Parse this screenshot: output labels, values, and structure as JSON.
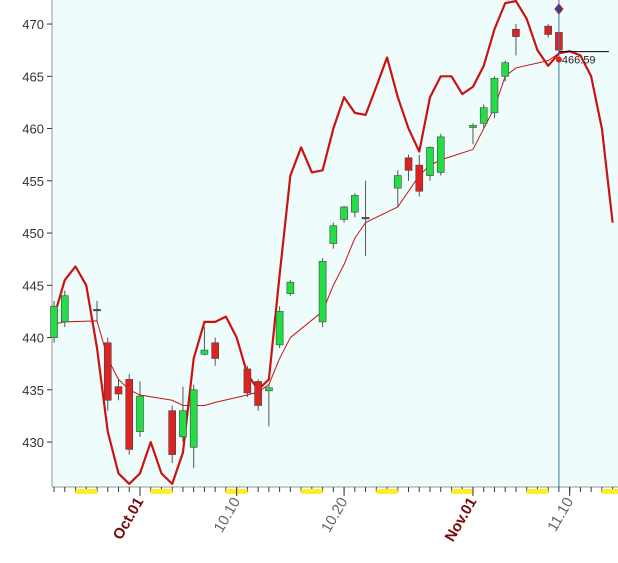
{
  "chart_data": {
    "type": "candlestick",
    "x": [
      -8,
      -7,
      -4,
      -3,
      -2,
      -1,
      0,
      3,
      4,
      5,
      6,
      7,
      10,
      11,
      12,
      13,
      14,
      17,
      18,
      19,
      20,
      21,
      24,
      25,
      26,
      27,
      28,
      31,
      32,
      33,
      34,
      35,
      38,
      39
    ],
    "open": [
      440,
      441.5,
      442.7,
      439.5,
      435.3,
      436,
      431,
      433,
      430.5,
      429.5,
      438.4,
      439.5,
      437,
      435.8,
      434.9,
      439.3,
      444.2,
      441.5,
      449,
      451.3,
      452,
      451.5,
      454.3,
      457.2,
      456.5,
      455.5,
      455.8,
      460.1,
      460.5,
      461.5,
      465,
      469.5,
      469.8,
      469.2
    ],
    "high": [
      443.5,
      444.5,
      443.5,
      440,
      436,
      436.5,
      435.8,
      433.5,
      435.3,
      435.5,
      441,
      440,
      437.3,
      436,
      435.5,
      443,
      445.5,
      447.6,
      451,
      452.6,
      453.8,
      455,
      456,
      457.5,
      457.5,
      458.3,
      459.5,
      460.5,
      462.3,
      465,
      466.5,
      470,
      470,
      469.3
    ],
    "low": [
      439.5,
      441,
      441.5,
      433,
      434,
      428.8,
      430.5,
      428,
      430,
      427.5,
      438.3,
      437.3,
      434.3,
      433,
      431.5,
      439,
      444,
      441,
      448.5,
      451,
      451.5,
      447.8,
      452.5,
      455,
      453.5,
      455,
      455.5,
      458.5,
      460,
      461,
      464.5,
      467,
      468.7,
      466.8
    ],
    "close": [
      443,
      444,
      442.7,
      434,
      434.6,
      429.3,
      434.4,
      428.8,
      433,
      435,
      438.8,
      438,
      434.7,
      433.5,
      435.2,
      442.5,
      445.3,
      447.3,
      450.7,
      452.5,
      453.6,
      451.5,
      455.5,
      456,
      454,
      458.2,
      459.2,
      460.3,
      462,
      464.8,
      466.3,
      468.8,
      469,
      467.5
    ],
    "up_color": "#22dd44",
    "down_color": "#dd2222",
    "series": [
      {
        "color": "#cc1111",
        "width": 1,
        "x": [
          -8,
          -7,
          -4,
          -3,
          -2,
          -1,
          0,
          3,
          4,
          5,
          6,
          7,
          10,
          11,
          12,
          13,
          14,
          17,
          18,
          19,
          20,
          21,
          24,
          25,
          26,
          27,
          28,
          31,
          32,
          33,
          34,
          35,
          38,
          39
        ],
        "values": [
          441.3,
          441.5,
          441.6,
          438,
          436,
          435,
          434.5,
          434,
          433.5,
          433.5,
          433.5,
          433.8,
          434.5,
          434.8,
          435.5,
          438,
          440,
          442.5,
          445,
          447,
          449.5,
          451,
          452.5,
          454,
          455.5,
          456.5,
          457,
          458,
          460,
          462,
          465,
          465.8,
          466.5,
          467.2
        ]
      },
      {
        "color": "#cc1111",
        "width": 2.2,
        "x": [
          -8,
          -7,
          -6,
          -5,
          -4,
          -3,
          -2,
          -1,
          0,
          1,
          2,
          3,
          4,
          5,
          6,
          7,
          8,
          9,
          10,
          11,
          12,
          13,
          14,
          15,
          16,
          17,
          18,
          19,
          20,
          21,
          22,
          23,
          24,
          25,
          26,
          27,
          28,
          29,
          30,
          31,
          32,
          33,
          34,
          35,
          36,
          37,
          38,
          39,
          40,
          41,
          42,
          43,
          44
        ],
        "values": [
          442,
          445.5,
          446.8,
          445,
          439,
          431,
          427,
          426,
          427,
          430,
          427,
          426,
          429,
          438,
          441.5,
          441.5,
          442,
          440,
          436.5,
          435,
          436,
          446,
          455.5,
          458.2,
          455.8,
          456,
          460,
          463,
          461.5,
          461.3,
          464,
          466.8,
          463,
          460,
          457.8,
          463,
          465,
          465,
          463.3,
          464,
          466,
          469.5,
          472,
          472.2,
          470.5,
          467.5,
          466,
          467.2,
          467.4,
          467,
          465,
          460,
          451
        ]
      }
    ],
    "xlim": [
      -8.19,
      44.5
    ],
    "ylim": [
      425.7,
      472.3
    ],
    "yticks": [
      430,
      435,
      440,
      445,
      450,
      455,
      460,
      465,
      470
    ],
    "xticks": [
      {
        "value": 0,
        "label": "Oct.01"
      },
      {
        "value": 9,
        "label": "10.10"
      },
      {
        "value": 19,
        "label": "10.20"
      },
      {
        "value": 31,
        "label": "Nov.01"
      },
      {
        "value": 40,
        "label": "11.10"
      }
    ],
    "xtick_colors": [
      "#7a0a0a",
      "#666666",
      "#666666",
      "#7a0a0a",
      "#666666"
    ],
    "cursor": {
      "x": 39,
      "value": 466.59,
      "label": "466.59"
    }
  }
}
